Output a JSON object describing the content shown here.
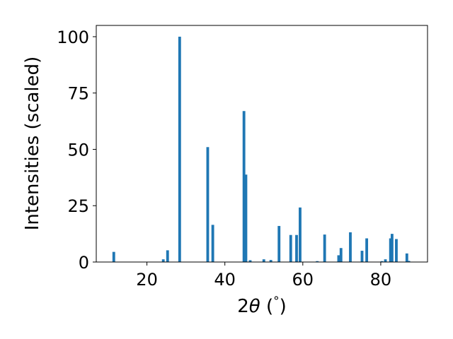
{
  "chart_data": {
    "type": "bar",
    "xlabel": "2θ (°)",
    "xlabel_parts": {
      "prefix": "2",
      "symbol": "θ",
      "suffix": " (",
      "degree": "°",
      "close": ")"
    },
    "ylabel": "Intensities (scaled)",
    "xlim": [
      7,
      92
    ],
    "ylim": [
      0,
      105
    ],
    "xticks": [
      20,
      40,
      60,
      80
    ],
    "yticks": [
      0,
      25,
      50,
      75,
      100
    ],
    "bar_width": 0.7,
    "color": "#1f77b4",
    "grid": false,
    "x": [
      11.5,
      24.2,
      25.3,
      28.4,
      35.6,
      36.9,
      44.9,
      45.4,
      46.5,
      50.0,
      51.8,
      53.9,
      56.9,
      58.4,
      59.3,
      63.7,
      65.6,
      69.2,
      69.8,
      72.2,
      75.2,
      76.4,
      80.3,
      81.2,
      82.5,
      82.9,
      84.0,
      86.7,
      87.2
    ],
    "values": [
      4.5,
      1.2,
      5.2,
      100.0,
      51.0,
      16.5,
      67.0,
      38.8,
      0.8,
      1.2,
      0.9,
      16.0,
      12.0,
      12.0,
      24.2,
      0.4,
      12.2,
      3.0,
      6.2,
      13.2,
      5.0,
      10.5,
      0.4,
      1.2,
      10.5,
      12.5,
      10.2,
      3.8,
      0.5
    ]
  }
}
